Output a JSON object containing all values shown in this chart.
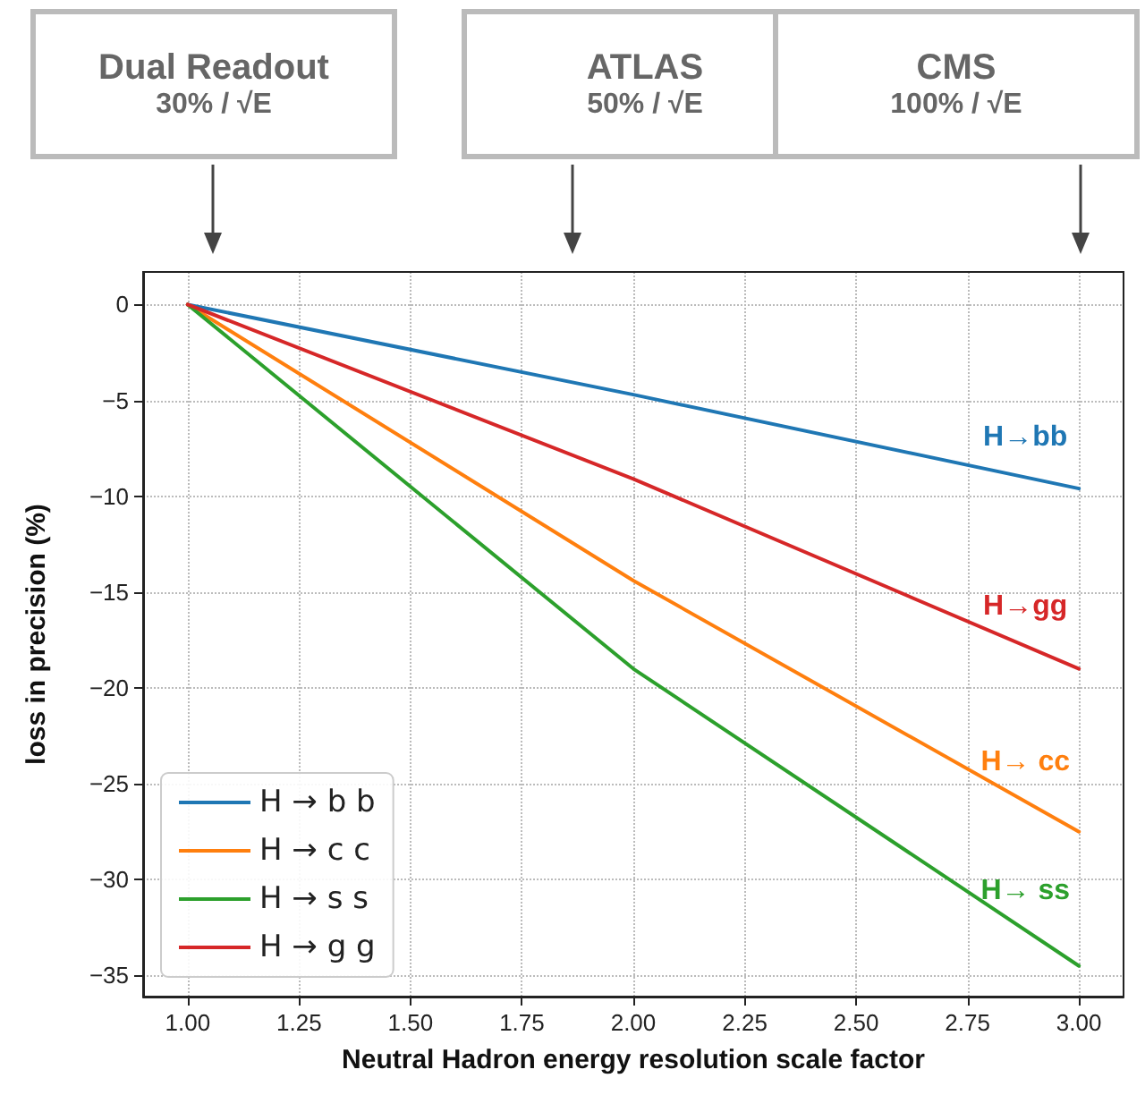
{
  "chart_data": {
    "type": "line",
    "xlabel": "Neutral Hadron energy resolution scale factor",
    "ylabel": "loss in precision (%)",
    "x": [
      1.0,
      2.0,
      3.0
    ],
    "series": [
      {
        "name": "H → b b",
        "color": "#1f77b4",
        "values": [
          0,
          -4.7,
          -9.6
        ]
      },
      {
        "name": "H → c c",
        "color": "#ff7f0e",
        "values": [
          0,
          -14.4,
          -27.5
        ]
      },
      {
        "name": "H → s s",
        "color": "#2ca02c",
        "values": [
          0,
          -19.0,
          -34.5
        ]
      },
      {
        "name": "H → g g",
        "color": "#d62728",
        "values": [
          0,
          -9.1,
          -19.0
        ]
      }
    ],
    "xlim": [
      0.9,
      3.1
    ],
    "ylim": [
      -36.1,
      1.7
    ],
    "xticks": [
      {
        "value": 1.0,
        "label": "1.00"
      },
      {
        "value": 1.25,
        "label": "1.25"
      },
      {
        "value": 1.5,
        "label": "1.50"
      },
      {
        "value": 1.75,
        "label": "1.75"
      },
      {
        "value": 2.0,
        "label": "2.00"
      },
      {
        "value": 2.25,
        "label": "2.25"
      },
      {
        "value": 2.5,
        "label": "2.50"
      },
      {
        "value": 2.75,
        "label": "2.75"
      },
      {
        "value": 3.0,
        "label": "3.00"
      }
    ],
    "yticks": [
      0,
      -5,
      -10,
      -15,
      -20,
      -25,
      -30,
      -35
    ],
    "annotations": [
      "H→bb",
      "H→ cc",
      "H→ ss",
      "H→gg",
      "Dual Readout\n30% / √E",
      "ATLAS\n50% / √E",
      "CMS\n100% / √E"
    ],
    "grid": true,
    "legend": "bottom left",
    "marker": "none",
    "line_style": "solid"
  }
}
